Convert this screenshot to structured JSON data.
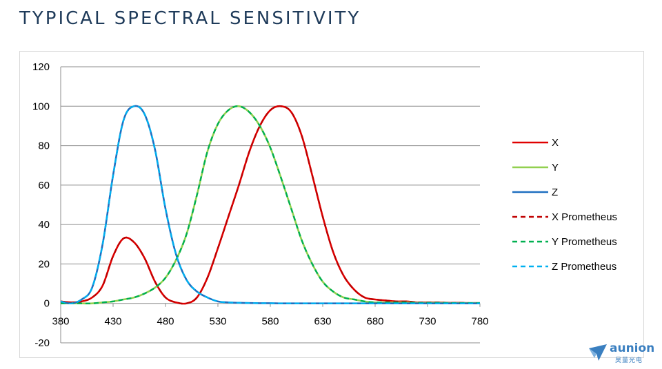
{
  "page": {
    "title": "TYPICAL SPECTRAL SENSITIVITY"
  },
  "logo": {
    "name": "aunion",
    "subtitle": "昊量光电",
    "color": "#3a7fc0"
  },
  "chart_data": {
    "type": "line",
    "title": "",
    "xlabel": "",
    "ylabel": "",
    "xlim": [
      380,
      780
    ],
    "ylim": [
      -20,
      120
    ],
    "xticks": [
      380,
      430,
      480,
      530,
      580,
      630,
      680,
      730,
      780
    ],
    "yticks": [
      -20,
      0,
      20,
      40,
      60,
      80,
      100,
      120
    ],
    "grid": "horizontal",
    "legend_position": "right",
    "x": [
      380,
      390,
      400,
      410,
      420,
      430,
      440,
      450,
      460,
      470,
      480,
      490,
      500,
      510,
      520,
      530,
      540,
      550,
      560,
      570,
      580,
      590,
      600,
      610,
      620,
      630,
      640,
      650,
      660,
      670,
      680,
      690,
      700,
      710,
      720,
      730,
      740,
      750,
      760,
      770,
      780
    ],
    "series": [
      {
        "name": "X",
        "color": "#e00000",
        "dash": "solid",
        "values": [
          1,
          0.5,
          1,
          3,
          9,
          24,
          33,
          31,
          23,
          11,
          3,
          0.5,
          0,
          3,
          13,
          28,
          44,
          60,
          77,
          90,
          98,
          100,
          97,
          85,
          65,
          44,
          26,
          14,
          7,
          3,
          2,
          1.5,
          1,
          1,
          0.5,
          0.5,
          0.5,
          0.3,
          0.3,
          0.2,
          0.2
        ]
      },
      {
        "name": "Y",
        "color": "#92d050",
        "dash": "solid",
        "values": [
          0,
          0,
          0,
          0,
          0.5,
          1,
          2,
          3,
          5,
          8,
          13,
          22,
          35,
          55,
          77,
          91,
          98,
          100,
          97,
          90,
          79,
          64,
          48,
          32,
          20,
          11,
          6,
          3,
          2,
          1,
          0.5,
          0.5,
          0.5,
          0.5,
          0.3,
          0.3,
          0.3,
          0.2,
          0.2,
          0.2,
          0.2
        ]
      },
      {
        "name": "Z",
        "color": "#1f6fc0",
        "dash": "solid",
        "values": [
          1,
          0,
          2,
          8,
          30,
          65,
          93,
          100,
          96,
          78,
          48,
          25,
          12,
          6,
          3,
          1,
          0.5,
          0.3,
          0.2,
          0.1,
          0.1,
          0,
          0,
          0,
          0,
          0,
          0,
          0,
          0,
          0,
          0,
          0,
          0,
          0,
          0,
          0,
          0,
          0,
          0,
          0,
          0
        ]
      },
      {
        "name": "X Prometheus",
        "color": "#c00000",
        "dash": "dashed",
        "values": [
          1,
          0.5,
          1,
          3,
          9,
          24,
          33,
          31,
          23,
          11,
          3,
          0.5,
          0,
          3,
          13,
          28,
          44,
          60,
          77,
          90,
          98,
          100,
          97,
          85,
          65,
          44,
          26,
          14,
          7,
          3,
          2,
          1.5,
          1,
          1,
          0.5,
          0.5,
          0.5,
          0.3,
          0.3,
          0.2,
          0.2
        ]
      },
      {
        "name": "Y Prometheus",
        "color": "#00b050",
        "dash": "dashed",
        "values": [
          0,
          0,
          0,
          0,
          0.5,
          1,
          2,
          3,
          5,
          8,
          13,
          22,
          35,
          55,
          77,
          91,
          98,
          100,
          97,
          90,
          79,
          64,
          48,
          32,
          20,
          11,
          6,
          3,
          2,
          1,
          0.5,
          0.5,
          0.5,
          0.5,
          0.3,
          0.3,
          0.3,
          0.2,
          0.2,
          0.2,
          0.2
        ]
      },
      {
        "name": "Z Prometheus",
        "color": "#00b0f0",
        "dash": "dashed",
        "values": [
          1,
          0,
          2,
          8,
          30,
          65,
          93,
          100,
          96,
          78,
          48,
          25,
          12,
          6,
          3,
          1,
          0.5,
          0.3,
          0.2,
          0.1,
          0.1,
          0,
          0,
          0,
          0,
          0,
          0,
          0,
          0,
          0,
          0,
          0,
          0,
          0,
          0,
          0,
          0,
          0,
          0,
          0,
          0
        ]
      }
    ]
  }
}
